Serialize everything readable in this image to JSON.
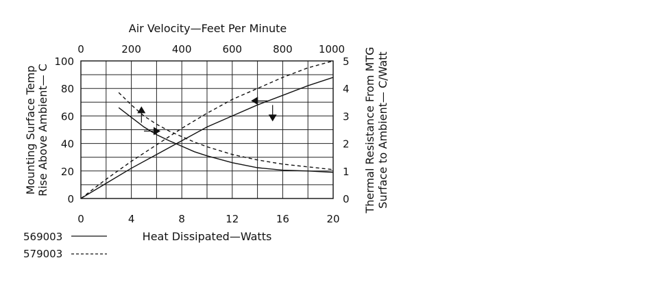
{
  "chart_data": {
    "type": "line",
    "title": "",
    "x_bottom": {
      "label": "Heat Dissipated—Watts",
      "range": [
        0,
        20
      ],
      "ticks": [
        "0",
        "4",
        "8",
        "12",
        "16",
        "20"
      ],
      "tick_values": [
        0,
        4,
        8,
        12,
        16,
        20
      ]
    },
    "x_top": {
      "label": "Air Velocity—Feet Per Minute",
      "range": [
        0,
        1000
      ],
      "ticks": [
        "0",
        "200",
        "400",
        "600",
        "800",
        "1000"
      ],
      "tick_values": [
        0,
        200,
        400,
        600,
        800,
        1000
      ]
    },
    "y_left": {
      "label_line1": "Mounting Surface Temp",
      "label_line2": "Rise Above Ambient— C",
      "range": [
        0,
        100
      ],
      "ticks": [
        "0",
        "20",
        "40",
        "60",
        "80",
        "100"
      ],
      "tick_values": [
        0,
        20,
        40,
        60,
        80,
        100
      ]
    },
    "y_right": {
      "label_line1": "Thermal Resistance From MTG",
      "label_line2": "Surface to Ambient— C/Watt",
      "range": [
        0,
        5
      ],
      "ticks": [
        "0",
        "1",
        "2",
        "3",
        "4",
        "5"
      ],
      "tick_values": [
        0,
        1,
        2,
        3,
        4,
        5
      ]
    },
    "grid": true,
    "legend_placement": "bottom-left",
    "legend": [
      {
        "label": "569003",
        "style": "solid"
      },
      {
        "label": "579003",
        "style": "dashed"
      }
    ],
    "series": [
      {
        "model": "569003",
        "quantity": "temperature-rise-vs-heat",
        "x_axis": "bottom",
        "y_axis": "left",
        "style": "solid",
        "x": [
          0,
          2,
          4,
          6,
          8,
          10,
          12,
          14,
          16,
          18,
          20
        ],
        "y": [
          0,
          11,
          22,
          32,
          42,
          52,
          60,
          68,
          75,
          82,
          88
        ]
      },
      {
        "model": "579003",
        "quantity": "temperature-rise-vs-heat",
        "x_axis": "bottom",
        "y_axis": "left",
        "style": "dashed",
        "x": [
          0,
          2,
          4,
          6,
          8,
          10,
          12,
          14,
          16,
          18,
          20
        ],
        "y": [
          0,
          14,
          27,
          39,
          51,
          62,
          72,
          80,
          88,
          95,
          100
        ]
      },
      {
        "model": "569003",
        "quantity": "thermal-resistance-vs-air-velocity",
        "x_axis": "top",
        "y_axis": "right",
        "style": "solid",
        "x": [
          150,
          200,
          250,
          300,
          350,
          400,
          450,
          500,
          600,
          700,
          800,
          900,
          1000
        ],
        "y": [
          3.3,
          2.95,
          2.6,
          2.32,
          2.1,
          1.9,
          1.7,
          1.55,
          1.3,
          1.12,
          1.03,
          1.0,
          0.95
        ]
      },
      {
        "model": "579003",
        "quantity": "thermal-resistance-vs-air-velocity",
        "x_axis": "top",
        "y_axis": "right",
        "style": "dashed",
        "x": [
          150,
          200,
          250,
          300,
          350,
          400,
          450,
          500,
          600,
          700,
          800,
          900,
          1000
        ],
        "y": [
          3.85,
          3.4,
          3.0,
          2.7,
          2.45,
          2.25,
          2.05,
          1.88,
          1.6,
          1.4,
          1.25,
          1.15,
          1.05
        ]
      }
    ],
    "annotations": [
      {
        "kind": "arrow",
        "points_to": "left-axis",
        "direction": "up",
        "at": {
          "x_axis": "bottom",
          "y_axis": "left",
          "x": 4.8,
          "y": 66
        }
      },
      {
        "kind": "arrow",
        "points_to": "right-axis",
        "direction": "right",
        "at": {
          "x_axis": "bottom",
          "y_axis": "left",
          "x": 6.2,
          "y": 49
        }
      },
      {
        "kind": "arrow",
        "points_to": "left-axis",
        "direction": "left",
        "at": {
          "x_axis": "bottom",
          "y_axis": "left",
          "x": 13.6,
          "y": 71
        }
      },
      {
        "kind": "arrow",
        "points_to": "right-axis",
        "direction": "down",
        "at": {
          "x_axis": "bottom",
          "y_axis": "left",
          "x": 15.2,
          "y": 57
        }
      }
    ]
  }
}
